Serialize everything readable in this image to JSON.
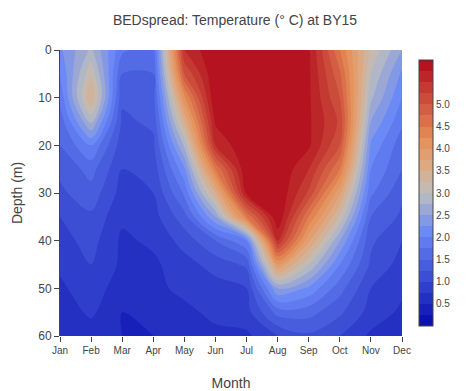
{
  "chart_data": {
    "type": "contour",
    "title": "BEDspread: Temperature (° C) at BY15",
    "xlabel": "Month",
    "ylabel": "Depth (m)",
    "categories": [
      "Jan",
      "Feb",
      "Mar",
      "Apr",
      "May",
      "Jun",
      "Jul",
      "Aug",
      "Sep",
      "Oct",
      "Nov",
      "Dec"
    ],
    "y": [
      0,
      5,
      10,
      15,
      20,
      25,
      30,
      35,
      40,
      45,
      50,
      55,
      60
    ],
    "ylim": [
      60,
      0
    ],
    "yticks": [
      0,
      10,
      20,
      30,
      40,
      50,
      60
    ],
    "z": [
      [
        2.2,
        2.8,
        1.8,
        1.6,
        5.5,
        6.0,
        6.0,
        6.0,
        5.8,
        4.5,
        3.2,
        2.5
      ],
      [
        2.0,
        3.2,
        1.5,
        1.5,
        5.0,
        6.0,
        6.0,
        6.0,
        5.8,
        4.8,
        3.0,
        2.2
      ],
      [
        1.8,
        3.5,
        1.3,
        1.4,
        4.2,
        6.0,
        6.0,
        6.0,
        5.8,
        5.0,
        2.8,
        2.0
      ],
      [
        1.6,
        2.8,
        1.2,
        1.3,
        3.5,
        5.8,
        6.0,
        6.0,
        5.8,
        5.2,
        2.5,
        1.8
      ],
      [
        1.5,
        2.0,
        1.1,
        1.2,
        2.8,
        5.5,
        6.0,
        6.0,
        5.8,
        5.0,
        2.2,
        1.6
      ],
      [
        1.3,
        1.6,
        1.0,
        1.1,
        2.2,
        4.5,
        6.0,
        6.0,
        5.5,
        4.5,
        2.0,
        1.5
      ],
      [
        1.2,
        1.4,
        0.9,
        1.0,
        1.8,
        3.5,
        5.8,
        6.0,
        5.2,
        3.8,
        1.8,
        1.3
      ],
      [
        1.0,
        1.2,
        0.8,
        0.9,
        1.4,
        2.5,
        4.5,
        6.0,
        4.5,
        3.2,
        1.5,
        1.2
      ],
      [
        0.9,
        1.1,
        0.7,
        0.8,
        1.1,
        1.5,
        2.0,
        5.5,
        3.8,
        2.5,
        1.3,
        1.0
      ],
      [
        0.8,
        1.0,
        0.7,
        0.7,
        0.9,
        1.1,
        1.3,
        4.0,
        3.0,
        2.0,
        1.2,
        0.9
      ],
      [
        0.7,
        0.9,
        0.6,
        0.7,
        0.8,
        0.9,
        1.0,
        2.5,
        2.2,
        1.6,
        1.0,
        0.8
      ],
      [
        0.6,
        0.8,
        0.5,
        0.6,
        0.7,
        0.8,
        0.9,
        1.6,
        1.6,
        1.3,
        0.9,
        0.7
      ],
      [
        0.5,
        0.6,
        0.5,
        0.5,
        0.6,
        0.7,
        0.7,
        1.0,
        1.2,
        1.0,
        0.7,
        0.6
      ]
    ],
    "colorbar_range": [
      0.0,
      6.0
    ],
    "contour_step": 0.25,
    "colorbar_ticks": [
      0.5,
      {
        "value": 1.0,
        "label": "1.0"
      },
      1.5,
      {
        "value": 2.0,
        "label": "2.0"
      },
      2.5,
      {
        "value": 3.0,
        "label": "3.0"
      },
      3.5,
      {
        "value": 4.0,
        "label": "4.0"
      },
      4.5,
      {
        "value": 5.0,
        "label": "5.0"
      }
    ],
    "grid": false
  }
}
